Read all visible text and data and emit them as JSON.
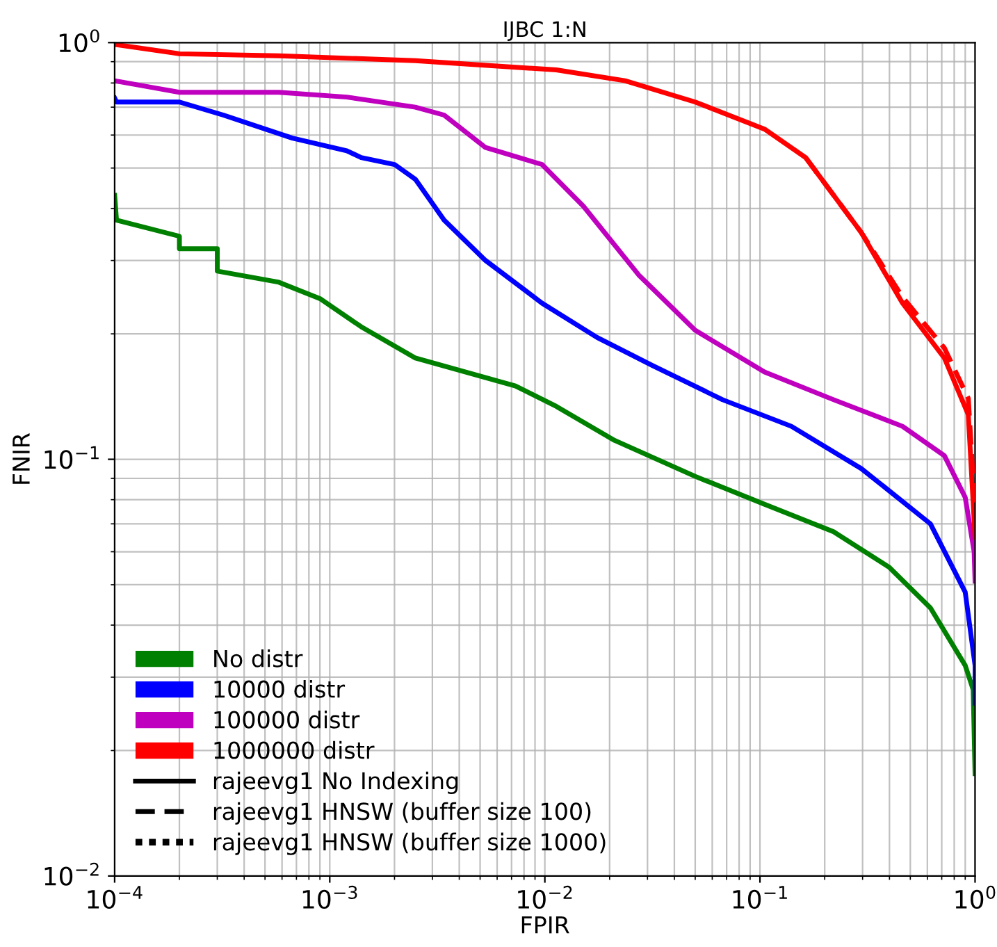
{
  "chart_data": {
    "type": "line",
    "title": "IJBC 1:N",
    "xlabel": "FPIR",
    "ylabel": "FNIR",
    "log": "xy",
    "grid": true,
    "legend": "bottom left",
    "xlim": [
      0.0001,
      1
    ],
    "ylim": [
      0.01,
      1
    ],
    "xticks": [
      {
        "value": 0.0001,
        "label": "10$^{−4}$"
      },
      {
        "value": 0.001,
        "label": "10$^{−3}$"
      },
      {
        "value": 0.01,
        "label": "10$^{−2}$"
      },
      {
        "value": 0.1,
        "label": "10$^{−1}$"
      },
      {
        "value": 1,
        "label": "10$^{0}$"
      }
    ],
    "yticks": [
      {
        "value": 0.01,
        "label": "10$^{−2}$"
      },
      {
        "value": 0.1,
        "label": "10$^{−1}$"
      },
      {
        "value": 1,
        "label": "10$^{0}$"
      }
    ],
    "annotations": [
      "rajeevg1 No Indexing",
      "rajeevg1 HNSW (buffer size 100)",
      "rajeevg1 HNSW (buffer size 1000)"
    ],
    "series": [
      {
        "name": "No distr",
        "color": "#008000",
        "line_style": "solid",
        "x": [
          0.0001,
          0.000102,
          0.0002,
          0.0002,
          0.0003,
          0.0003,
          0.00058,
          0.0009,
          0.0014,
          0.0025,
          0.0073,
          0.0113,
          0.0211,
          0.05,
          0.105,
          0.22,
          0.4,
          0.62,
          0.9,
          0.98,
          1.0
        ],
        "values": [
          0.43,
          0.375,
          0.343,
          0.32,
          0.32,
          0.283,
          0.266,
          0.243,
          0.208,
          0.175,
          0.15,
          0.134,
          0.111,
          0.091,
          0.078,
          0.067,
          0.055,
          0.044,
          0.032,
          0.028,
          0.0176
        ]
      },
      {
        "name": "10000 distr",
        "color": "#0000ff",
        "line_style": "solid",
        "x": [
          0.0001,
          0.000102,
          0.0002,
          0.00032,
          0.00067,
          0.0012,
          0.0014,
          0.002,
          0.0025,
          0.0034,
          0.0053,
          0.0097,
          0.0175,
          0.0316,
          0.067,
          0.14,
          0.296,
          0.62,
          0.9,
          1.0,
          1.0
        ],
        "values": [
          0.736,
          0.72,
          0.72,
          0.67,
          0.59,
          0.55,
          0.53,
          0.51,
          0.47,
          0.375,
          0.3,
          0.237,
          0.196,
          0.168,
          0.139,
          0.12,
          0.095,
          0.07,
          0.048,
          0.032,
          0.026
        ]
      },
      {
        "name": "100000 distr",
        "color": "#bf00bf",
        "line_style": "solid",
        "x": [
          0.0001,
          0.00015,
          0.0002,
          0.00058,
          0.0012,
          0.0025,
          0.0034,
          0.0053,
          0.0097,
          0.0151,
          0.0273,
          0.05,
          0.105,
          0.22,
          0.46,
          0.72,
          0.9,
          0.99,
          1.0
        ],
        "values": [
          0.81,
          0.78,
          0.76,
          0.76,
          0.74,
          0.7,
          0.67,
          0.56,
          0.51,
          0.405,
          0.277,
          0.204,
          0.162,
          0.139,
          0.12,
          0.102,
          0.081,
          0.06,
          0.051
        ]
      },
      {
        "name": "1000000 distr",
        "color": "#ff0000",
        "line_style": "solid",
        "x": [
          0.0001,
          0.0002,
          0.00058,
          0.0025,
          0.0113,
          0.0236,
          0.05,
          0.105,
          0.163,
          0.296,
          0.46,
          0.72,
          0.93,
          1.0
        ],
        "values": [
          0.99,
          0.94,
          0.93,
          0.905,
          0.86,
          0.81,
          0.72,
          0.62,
          0.53,
          0.35,
          0.237,
          0.175,
          0.128,
          0.065
        ]
      },
      {
        "color": "#ff0000",
        "line_style": "dashed",
        "x": [
          0.163,
          0.296,
          0.46,
          0.72,
          0.93,
          1.0
        ],
        "values": [
          0.53,
          0.35,
          0.245,
          0.185,
          0.14,
          0.075
        ]
      }
    ]
  }
}
